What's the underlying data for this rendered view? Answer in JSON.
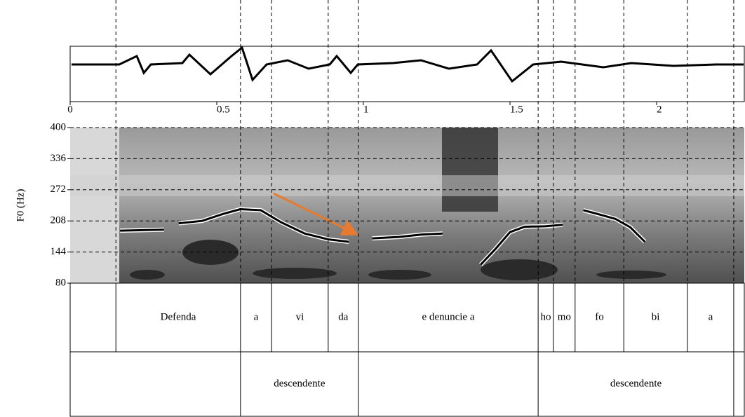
{
  "chart_data": {
    "type": "line",
    "y_label": "F0 (Hz)",
    "xlim": [
      0,
      2.3
    ],
    "xticks": [
      0,
      0.5,
      1,
      1.5,
      2
    ],
    "ylim": [
      80,
      400
    ],
    "yticks": [
      80,
      144,
      208,
      272,
      336,
      400
    ],
    "grid": true,
    "x": [
      0.17,
      0.32,
      null,
      0.37,
      0.45,
      0.52,
      0.58,
      0.65,
      0.72,
      0.8,
      0.88,
      0.95,
      null,
      1.03,
      1.12,
      1.2,
      1.27,
      null,
      1.4,
      1.45,
      1.5,
      1.55,
      1.62,
      1.68,
      null,
      1.75,
      1.8,
      1.86,
      1.91,
      1.96
    ],
    "series": [
      {
        "color": "#000000",
        "values": [
          188,
          190,
          null,
          203,
          208,
          222,
          232,
          230,
          205,
          182,
          170,
          165,
          null,
          172,
          175,
          180,
          182,
          null,
          118,
          150,
          185,
          196,
          197,
          200,
          null,
          230,
          222,
          212,
          195,
          165
        ]
      }
    ],
    "tiers": [
      {
        "boundaries": [
          0,
          0.156,
          0.581,
          0.687,
          0.88,
          0.983,
          1.596,
          1.648,
          1.722,
          1.888,
          2.105,
          2.263,
          2.3
        ],
        "labels": [
          null,
          "Defenda",
          "a",
          "vi",
          "da",
          "e denuncie a",
          "ho",
          "mo",
          "fo",
          "bi",
          "a",
          null
        ]
      },
      {
        "boundaries": [
          0,
          0.581,
          0.983,
          1.596,
          2.263,
          2.3
        ],
        "labels": [
          null,
          "descendente",
          null,
          "descendente",
          null
        ]
      }
    ]
  }
}
